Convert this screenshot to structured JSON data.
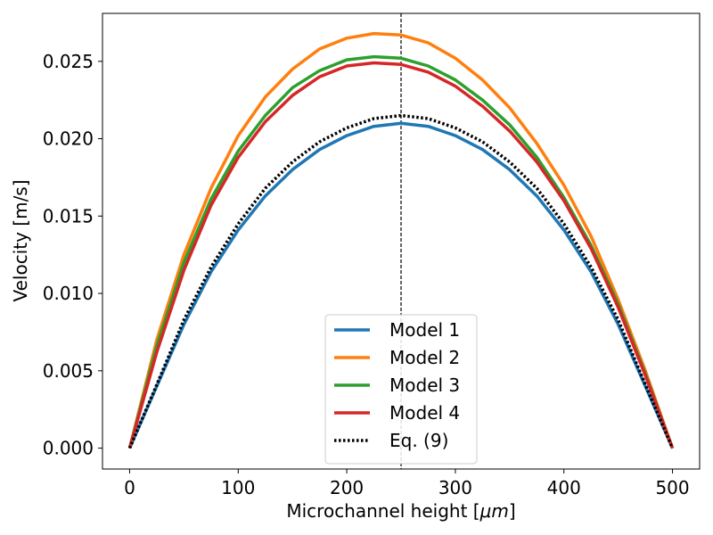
{
  "chart_data": {
    "type": "line",
    "title": "",
    "xlabel": "Microchannel height [",
    "xlabel_unit": "μm",
    "xlabel_suffix": "]",
    "ylabel": "Velocity [m/s]",
    "xlim": [
      -25,
      525
    ],
    "ylim": [
      -0.00135,
      0.0281
    ],
    "xticks": [
      0,
      100,
      200,
      300,
      400,
      500
    ],
    "xtick_labels": [
      "0",
      "100",
      "200",
      "300",
      "400",
      "500"
    ],
    "yticks": [
      0.0,
      0.005,
      0.01,
      0.015,
      0.02,
      0.025
    ],
    "ytick_labels": [
      "0.000",
      "0.005",
      "0.010",
      "0.015",
      "0.020",
      "0.025"
    ],
    "grid": false,
    "legend_position": "lower-center",
    "vline": {
      "x": 250,
      "style": "dashed",
      "color": "#000000"
    },
    "x": [
      0,
      25,
      50,
      75,
      100,
      125,
      150,
      175,
      200,
      225,
      250,
      275,
      300,
      325,
      350,
      375,
      400,
      425,
      450,
      475,
      500
    ],
    "series": [
      {
        "name": "Model 1",
        "color": "#1f77b4",
        "style": "solid",
        "values": [
          0.0,
          0.004,
          0.008,
          0.0114,
          0.0141,
          0.0163,
          0.018,
          0.0193,
          0.0202,
          0.0208,
          0.021,
          0.0208,
          0.0202,
          0.0193,
          0.018,
          0.0163,
          0.0141,
          0.0114,
          0.008,
          0.004,
          0.0
        ]
      },
      {
        "name": "Model 2",
        "color": "#ff7f0e",
        "style": "solid",
        "values": [
          0.0,
          0.007,
          0.0125,
          0.0168,
          0.0202,
          0.0227,
          0.0245,
          0.0258,
          0.0265,
          0.0268,
          0.0267,
          0.0262,
          0.0252,
          0.0238,
          0.022,
          0.0197,
          0.017,
          0.0137,
          0.0096,
          0.005,
          0.0
        ]
      },
      {
        "name": "Model 3",
        "color": "#2ca02c",
        "style": "solid",
        "values": [
          0.0,
          0.0066,
          0.012,
          0.0161,
          0.0192,
          0.0215,
          0.0233,
          0.0244,
          0.0251,
          0.0253,
          0.0252,
          0.0247,
          0.0238,
          0.0225,
          0.0209,
          0.0188,
          0.0162,
          0.0131,
          0.0093,
          0.0048,
          0.0
        ]
      },
      {
        "name": "Model 4",
        "color": "#d62728",
        "style": "solid",
        "values": [
          0.0,
          0.0062,
          0.0115,
          0.0157,
          0.0188,
          0.0211,
          0.0228,
          0.024,
          0.0247,
          0.0249,
          0.0248,
          0.0243,
          0.0234,
          0.0221,
          0.0205,
          0.0185,
          0.016,
          0.0129,
          0.0091,
          0.0047,
          0.0
        ]
      },
      {
        "name": "Eq. (9)",
        "color": "#000000",
        "style": "dotted",
        "values": [
          0.0,
          0.0041,
          0.0083,
          0.0117,
          0.0145,
          0.0168,
          0.0185,
          0.0198,
          0.0207,
          0.0213,
          0.0215,
          0.0213,
          0.0207,
          0.0198,
          0.0185,
          0.0168,
          0.0145,
          0.0117,
          0.0083,
          0.0041,
          0.0
        ]
      }
    ]
  }
}
